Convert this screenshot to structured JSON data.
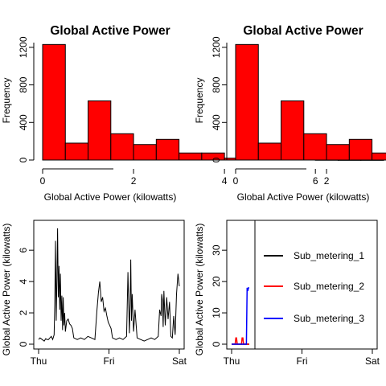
{
  "chart_data": [
    {
      "type": "bar",
      "title": "Global Active Power",
      "xlabel": "Global Active Power (kilowatts)",
      "ylabel": "Frequency",
      "bar_color": "#ff0000",
      "bin_edges": [
        0,
        0.5,
        1,
        1.5,
        2,
        2.5,
        3,
        3.5,
        4,
        4.5,
        5,
        5.5,
        6,
        6.5,
        7,
        7.5
      ],
      "values": [
        1230,
        180,
        630,
        280,
        165,
        220,
        75,
        75,
        20,
        20,
        8,
        6,
        2,
        1,
        1
      ],
      "xlim": [
        0,
        7.5
      ],
      "ylim": [
        0,
        1250
      ],
      "xticks": [
        0,
        2,
        4,
        6
      ],
      "yticks": [
        0,
        400,
        800,
        1200
      ]
    },
    {
      "type": "bar",
      "title": "Global Active Power",
      "xlabel": "Global Active Power (kilowatts)",
      "ylabel": "Frequency",
      "bar_color": "#ff0000",
      "bin_edges": [
        0,
        0.5,
        1,
        1.5,
        2,
        2.5,
        3,
        3.5,
        4,
        4.5,
        5,
        5.5,
        6,
        6.5,
        7,
        7.5
      ],
      "values": [
        1230,
        180,
        630,
        280,
        165,
        220,
        75,
        75,
        20,
        20,
        8,
        6,
        2,
        1,
        1
      ],
      "xlim": [
        0,
        7.5
      ],
      "ylim": [
        0,
        1250
      ],
      "xticks": [
        0,
        2,
        4,
        6
      ],
      "yticks": [
        0,
        400,
        800,
        1200
      ]
    },
    {
      "type": "line",
      "title": "",
      "xlabel": "",
      "ylabel": "Global Active Power (kilowatts)",
      "line_color": "#000000",
      "x_tick_labels": [
        "Thu",
        "Fri",
        "Sat"
      ],
      "xlim": [
        0,
        2
      ],
      "ylim": [
        0,
        7.6
      ],
      "yticks": [
        0,
        2,
        4,
        6
      ],
      "x": [
        0,
        0.02,
        0.05,
        0.08,
        0.1,
        0.12,
        0.14,
        0.16,
        0.18,
        0.2,
        0.22,
        0.23,
        0.24,
        0.25,
        0.26,
        0.27,
        0.28,
        0.29,
        0.3,
        0.31,
        0.32,
        0.33,
        0.34,
        0.35,
        0.36,
        0.37,
        0.38,
        0.4,
        0.42,
        0.44,
        0.46,
        0.48,
        0.5,
        0.55,
        0.6,
        0.65,
        0.7,
        0.75,
        0.8,
        0.83,
        0.85,
        0.87,
        0.89,
        0.91,
        0.93,
        0.95,
        0.97,
        0.99,
        1.01,
        1.03,
        1.05,
        1.1,
        1.15,
        1.2,
        1.25,
        1.27,
        1.29,
        1.3,
        1.31,
        1.32,
        1.33,
        1.35,
        1.37,
        1.4,
        1.45,
        1.5,
        1.55,
        1.6,
        1.65,
        1.7,
        1.72,
        1.74,
        1.75,
        1.76,
        1.77,
        1.78,
        1.8,
        1.82,
        1.84,
        1.86,
        1.88,
        1.9,
        1.92,
        1.94,
        1.96,
        1.98,
        2.0
      ],
      "y": [
        0.3,
        0.4,
        0.3,
        0.2,
        0.35,
        0.3,
        0.3,
        0.4,
        0.5,
        0.3,
        0.6,
        2.5,
        6.6,
        1.5,
        4.2,
        7.4,
        3.0,
        5.0,
        2.2,
        4.5,
        1.5,
        3.1,
        0.9,
        3.0,
        1.2,
        2.0,
        0.8,
        1.5,
        1.6,
        1.3,
        1.2,
        1.0,
        0.4,
        0.3,
        0.4,
        0.3,
        0.5,
        0.4,
        0.3,
        2.2,
        3.3,
        4.0,
        2.7,
        3.0,
        2.1,
        2.3,
        1.8,
        1.4,
        1.2,
        1.0,
        0.4,
        0.3,
        0.4,
        0.3,
        0.5,
        4.6,
        0.7,
        2.6,
        5.4,
        1.5,
        3.2,
        0.8,
        2.2,
        0.4,
        0.3,
        0.2,
        0.3,
        0.4,
        0.3,
        0.5,
        2.2,
        1.8,
        3.2,
        2.8,
        1.1,
        3.4,
        1.2,
        3.0,
        1.6,
        2.7,
        0.5,
        0.4,
        1.8,
        0.6,
        3.2,
        4.5,
        3.7
      ]
    },
    {
      "type": "line",
      "title": "",
      "xlabel": "",
      "ylabel": "Global Active Power (kilowatts)",
      "x_tick_labels": [
        "Thu",
        "Fri",
        "Sat"
      ],
      "xlim": [
        0,
        2
      ],
      "ylim": [
        0,
        38
      ],
      "yticks": [
        0,
        10,
        20,
        30
      ],
      "legend_position": "top-right",
      "series": [
        {
          "name": "Sub_metering_1",
          "color": "#000000",
          "x": [
            0,
            0.25
          ],
          "y": [
            0,
            0
          ]
        },
        {
          "name": "Sub_metering_2",
          "color": "#ff0000",
          "x": [
            0,
            0.05,
            0.06,
            0.07,
            0.08,
            0.12,
            0.14,
            0.15,
            0.16,
            0.17,
            0.25
          ],
          "y": [
            0,
            0,
            2,
            2,
            0,
            0,
            0,
            2,
            2,
            0,
            0
          ]
        },
        {
          "name": "Sub_metering_3",
          "color": "#0000ff",
          "x": [
            0,
            0.2,
            0.21,
            0.22,
            0.23,
            0.24,
            0.25
          ],
          "y": [
            0,
            0,
            0,
            18,
            17,
            18,
            18
          ]
        }
      ]
    }
  ]
}
